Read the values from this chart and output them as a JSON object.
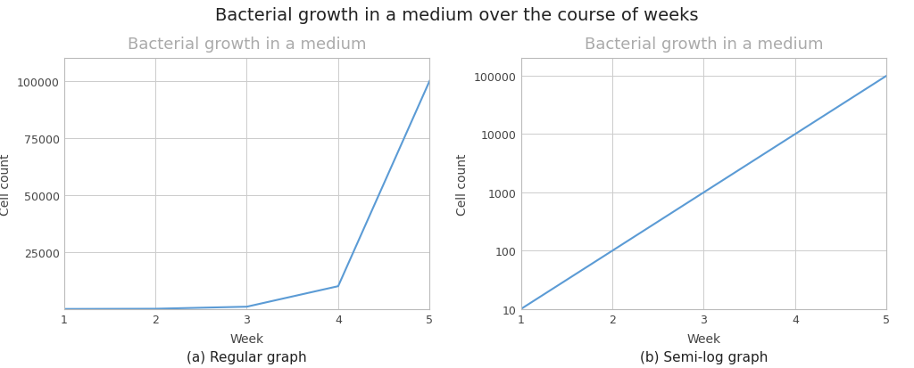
{
  "title": "Bacterial growth in a medium over the course of weeks",
  "title_fontsize": 14,
  "subplot_title": "Bacterial growth in a medium",
  "subplot_title_color": "#aaaaaa",
  "subplot_title_fontsize": 13,
  "x_data": [
    1,
    2,
    3,
    4,
    5
  ],
  "y_data": [
    10,
    100,
    1000,
    10000,
    100000
  ],
  "xlabel": "Week",
  "ylabel": "Cell count",
  "line_color": "#5b9bd5",
  "line_width": 1.5,
  "caption_left": "(a) Regular graph",
  "caption_right": "(b) Semi-log graph",
  "caption_fontsize": 11,
  "background_color": "#ffffff",
  "axes_bg_color": "#ffffff",
  "grid_color": "#cccccc",
  "spine_color": "#bbbbbb",
  "tick_color": "#444444",
  "label_fontsize": 10,
  "tick_fontsize": 9
}
